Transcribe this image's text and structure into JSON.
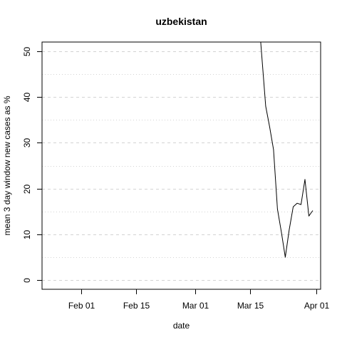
{
  "chart_data": {
    "type": "line",
    "title": "uzbekistan",
    "xlabel": "date",
    "ylabel": "mean  3  day window new cases as %",
    "x_ticks": [
      "Feb 01",
      "Feb 15",
      "Mar 01",
      "Mar 15",
      "Apr 01"
    ],
    "y_ticks": [
      "0",
      "10",
      "20",
      "30",
      "40",
      "50"
    ],
    "xlim": [
      "2020-01-22",
      "2020-04-02"
    ],
    "ylim": [
      -2,
      52
    ],
    "grid": {
      "horizontal": true,
      "major_style": "dashed",
      "minor_style": "dotted",
      "color": "#d3d3d3"
    },
    "series": [
      {
        "color": "#000000",
        "points": [
          {
            "x": "2020-03-17",
            "y": 60
          },
          {
            "x": "2020-03-18",
            "y": 49
          },
          {
            "x": "2020-03-19",
            "y": 38
          },
          {
            "x": "2020-03-20",
            "y": 33.5
          },
          {
            "x": "2020-03-21",
            "y": 28.5
          },
          {
            "x": "2020-03-22",
            "y": 15.5
          },
          {
            "x": "2020-03-23",
            "y": 10.5
          },
          {
            "x": "2020-03-24",
            "y": 5
          },
          {
            "x": "2020-03-25",
            "y": 11
          },
          {
            "x": "2020-03-26",
            "y": 16
          },
          {
            "x": "2020-03-27",
            "y": 16.8
          },
          {
            "x": "2020-03-28",
            "y": 16.5
          },
          {
            "x": "2020-03-29",
            "y": 22
          },
          {
            "x": "2020-03-30",
            "y": 14
          },
          {
            "x": "2020-03-31",
            "y": 15.2
          }
        ]
      }
    ]
  }
}
